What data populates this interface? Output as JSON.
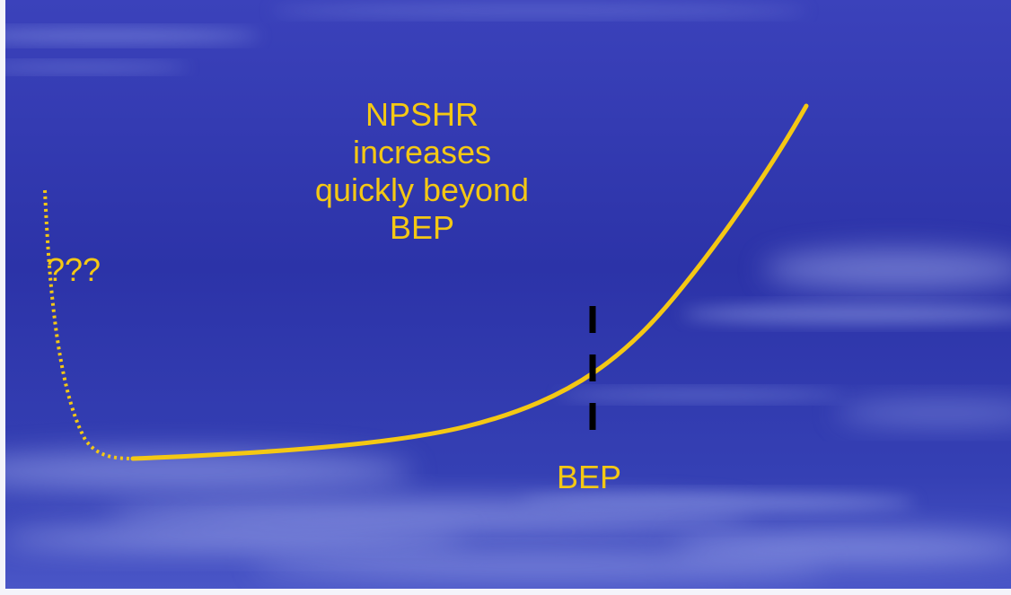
{
  "annotation": {
    "lines": [
      "NPSHR",
      "increases",
      "quickly beyond",
      "BEP"
    ]
  },
  "unknown_label": "???",
  "bep_label": "BEP",
  "colors": {
    "background_dark": "#2a2fa8",
    "background_mid": "#3a44c0",
    "cloud": "#a8b2ee",
    "curve": "#f4c814",
    "text": "#f4c814",
    "marker": "#000000"
  }
}
